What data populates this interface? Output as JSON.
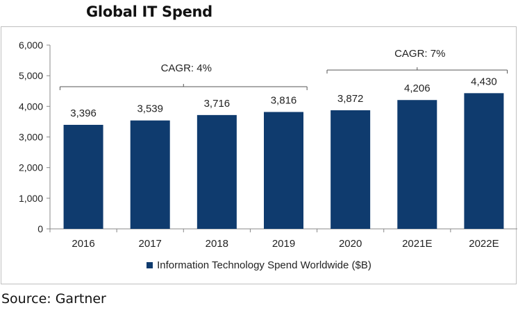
{
  "title": "Global IT Spend",
  "source": "Source: Gartner",
  "chart_data": {
    "type": "bar",
    "title": "Global IT Spend",
    "xlabel": "",
    "ylabel": "",
    "categories": [
      "2016",
      "2017",
      "2018",
      "2019",
      "2020",
      "2021E",
      "2022E"
    ],
    "series": [
      {
        "name": "Information Technology Spend Worldwide ($B)",
        "values": [
          3396,
          3539,
          3716,
          3816,
          3872,
          4206,
          4430
        ],
        "color": "#0f3b6e"
      }
    ],
    "data_labels": [
      "3,396",
      "3,539",
      "3,716",
      "3,816",
      "3,872",
      "4,206",
      "4,430"
    ],
    "ylim": [
      0,
      6000
    ],
    "yticks": [
      0,
      1000,
      2000,
      3000,
      4000,
      5000,
      6000
    ],
    "ytick_labels": [
      "0",
      "1,000",
      "2,000",
      "3,000",
      "4,000",
      "5,000",
      "6,000"
    ],
    "grid": false,
    "legend_position": "bottom",
    "annotations": [
      {
        "text": "CAGR: 4%",
        "from_category": "2016",
        "to_category": "2019"
      },
      {
        "text": "CAGR: 7%",
        "from_category": "2020",
        "to_category": "2022E"
      }
    ]
  }
}
